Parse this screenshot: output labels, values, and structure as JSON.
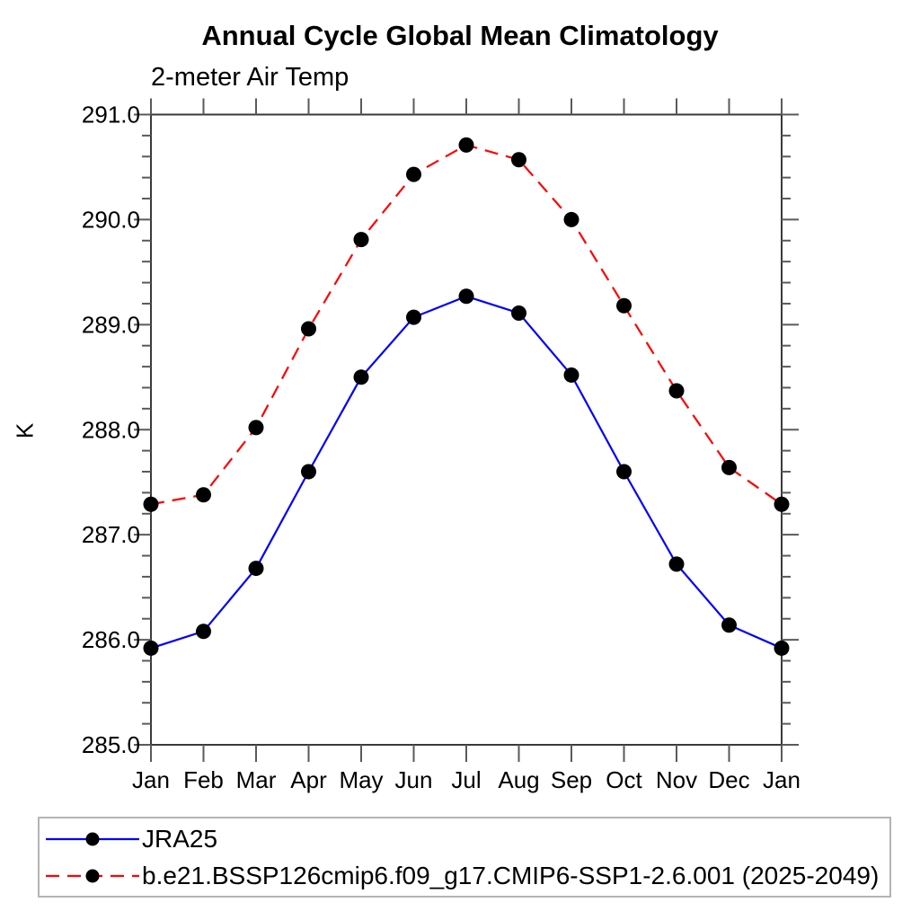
{
  "chart_data": {
    "type": "line",
    "title": "Annual Cycle Global Mean Climatology",
    "subtitle": "2-meter Air Temp",
    "ylabel": "K",
    "xlabel": "",
    "categories": [
      "Jan",
      "Feb",
      "Mar",
      "Apr",
      "May",
      "Jun",
      "Jul",
      "Aug",
      "Sep",
      "Oct",
      "Nov",
      "Dec",
      "Jan"
    ],
    "ylim": [
      285.0,
      291.0
    ],
    "ytick_labels": [
      "285.0",
      "286.0",
      "287.0",
      "288.0",
      "289.0",
      "290.0",
      "291.0"
    ],
    "ytick_values": [
      285.0,
      286.0,
      287.0,
      288.0,
      289.0,
      290.0,
      291.0
    ],
    "yminor_step": 0.2,
    "grid": false,
    "legend_position": "bottom",
    "marker": {
      "shape": "circle",
      "color": "#000000"
    },
    "series": [
      {
        "name": "JRA25",
        "color": "#0000ff",
        "line_style": "solid",
        "marker": "circle",
        "marker_color": "#000000",
        "values": [
          285.92,
          286.08,
          286.68,
          287.6,
          288.5,
          289.07,
          289.27,
          289.11,
          288.52,
          287.6,
          286.72,
          286.14,
          285.92
        ]
      },
      {
        "name": "b.e21.BSSP126cmip6.f09_g17.CMIP6-SSP1-2.6.001 (2025-2049)",
        "color": "#ff0000",
        "line_style": "dashed",
        "marker": "circle",
        "marker_color": "#000000",
        "values": [
          287.29,
          287.38,
          288.02,
          288.96,
          289.81,
          290.43,
          290.71,
          290.57,
          290.0,
          289.18,
          288.37,
          287.64,
          287.29
        ]
      }
    ]
  }
}
